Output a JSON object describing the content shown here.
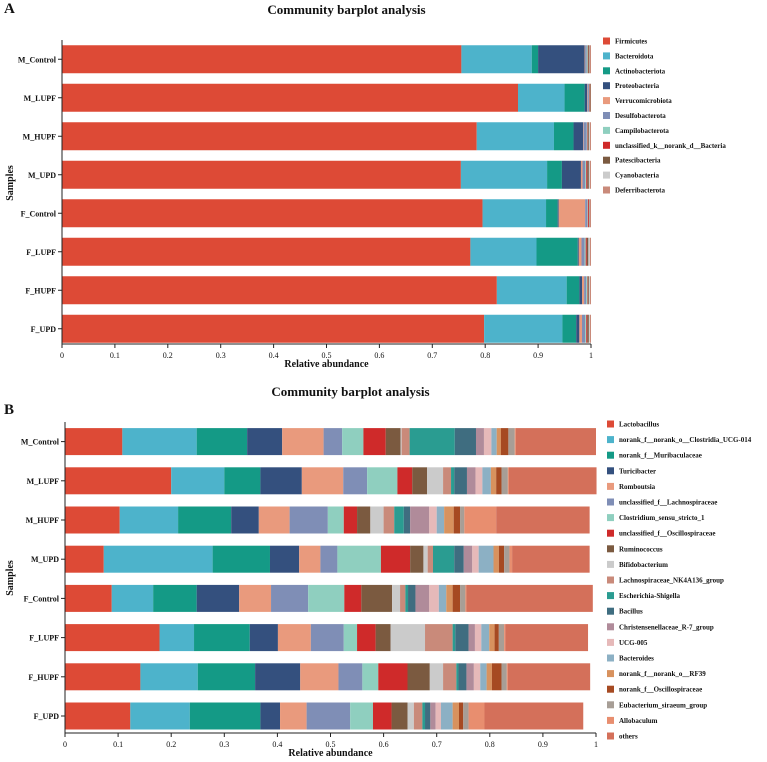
{
  "chart_data": [
    {
      "type": "bar",
      "orientation": "horizontal-stacked",
      "panel": "A",
      "title": "Community barplot analysis",
      "xlabel": "Relative abundance",
      "ylabel": "Samples",
      "xlim": [
        0,
        1
      ],
      "xticks": [
        "0",
        "0.1",
        "0.2",
        "0.3",
        "0.4",
        "0.5",
        "0.6",
        "0.7",
        "0.8",
        "0.9",
        "1"
      ],
      "categories": [
        "M_Control",
        "M_LUPF",
        "M_HUPF",
        "M_UPD",
        "F_Control",
        "F_LUPF",
        "F_HUPF",
        "F_UPD"
      ],
      "legend_position": "right",
      "series": [
        {
          "name": "Firmicutes",
          "color": "#dd4a36",
          "values": [
            0.755,
            0.862,
            0.784,
            0.754,
            0.795,
            0.772,
            0.822,
            0.798
          ]
        },
        {
          "name": "Bacteroidota",
          "color": "#4db3cb",
          "values": [
            0.133,
            0.088,
            0.146,
            0.163,
            0.12,
            0.125,
            0.132,
            0.148
          ]
        },
        {
          "name": "Actinobacteriota",
          "color": "#149a86",
          "values": [
            0.012,
            0.038,
            0.037,
            0.028,
            0.022,
            0.078,
            0.024,
            0.026
          ]
        },
        {
          "name": "Proteobacteria",
          "color": "#34507e",
          "values": [
            0.088,
            0.005,
            0.018,
            0.036,
            0.002,
            0.002,
            0.005,
            0.006
          ]
        },
        {
          "name": "Verrucomicrobiota",
          "color": "#e99a7d",
          "values": [
            0.001,
            0.001,
            0.001,
            0.003,
            0.05,
            0.005,
            0.004,
            0.005
          ]
        },
        {
          "name": "Desulfobacterota",
          "color": "#7f8eb6",
          "values": [
            0.003,
            0.002,
            0.006,
            0.005,
            0.004,
            0.006,
            0.004,
            0.006
          ]
        },
        {
          "name": "Campilobacterota",
          "color": "#8fcfbf",
          "values": [
            0.002,
            0.001,
            0.001,
            0.002,
            0.001,
            0.002,
            0.002,
            0.002
          ]
        },
        {
          "name": "unclassified_k__norank_d__Bacteria",
          "color": "#cf2a2a",
          "values": [
            0.001,
            0.001,
            0.001,
            0.002,
            0.002,
            0.002,
            0.001,
            0.002
          ]
        },
        {
          "name": "Patescibacteria",
          "color": "#7b5a40",
          "values": [
            0.002,
            0.001,
            0.002,
            0.003,
            0.001,
            0.003,
            0.002,
            0.003
          ]
        },
        {
          "name": "Cyanobacteria",
          "color": "#cbcbcb",
          "values": [
            0.001,
            0.0,
            0.002,
            0.002,
            0.001,
            0.003,
            0.002,
            0.002
          ]
        },
        {
          "name": "Deferribacterota",
          "color": "#c98a7a",
          "values": [
            0.002,
            0.001,
            0.002,
            0.002,
            0.002,
            0.002,
            0.002,
            0.002
          ]
        }
      ]
    },
    {
      "type": "bar",
      "orientation": "horizontal-stacked",
      "panel": "B",
      "title": "Community barplot analysis",
      "xlabel": "Relative abundance",
      "ylabel": "Samples",
      "xlim": [
        0,
        1
      ],
      "xticks": [
        "0",
        "0.1",
        "0.2",
        "0.3",
        "0.4",
        "0.5",
        "0.6",
        "0.7",
        "0.8",
        "0.9",
        "1"
      ],
      "categories": [
        "M_Control",
        "M_LUPF",
        "M_HUPF",
        "M_UPD",
        "F_Control",
        "F_LUPF",
        "F_HUPF",
        "F_UPD"
      ],
      "legend_position": "right",
      "series": [
        {
          "name": "Lactobacillus",
          "color": "#dd4a36",
          "values": [
            0.108,
            0.2,
            0.103,
            0.073,
            0.088,
            0.178,
            0.142,
            0.123
          ]
        },
        {
          "name": "norank_f__norank_o__Clostridia_UCG-014",
          "color": "#4db3cb",
          "values": [
            0.14,
            0.1,
            0.11,
            0.205,
            0.078,
            0.065,
            0.108,
            0.112
          ]
        },
        {
          "name": "norank_f__Muribaculaceae",
          "color": "#149a86",
          "values": [
            0.095,
            0.068,
            0.1,
            0.108,
            0.082,
            0.105,
            0.108,
            0.133
          ]
        },
        {
          "name": "Turicibacter",
          "color": "#34507e",
          "values": [
            0.066,
            0.078,
            0.052,
            0.055,
            0.08,
            0.053,
            0.085,
            0.037
          ]
        },
        {
          "name": "Romboutsia",
          "color": "#e99a7d",
          "values": [
            0.078,
            0.078,
            0.058,
            0.04,
            0.06,
            0.062,
            0.072,
            0.05
          ]
        },
        {
          "name": "unclassified_f__Lachnospiraceae",
          "color": "#7f8eb6",
          "values": [
            0.035,
            0.045,
            0.072,
            0.032,
            0.07,
            0.062,
            0.045,
            0.082
          ]
        },
        {
          "name": "Clostridium_sensu_stricto_1",
          "color": "#8fcfbf",
          "values": [
            0.04,
            0.057,
            0.03,
            0.082,
            0.068,
            0.025,
            0.03,
            0.043
          ]
        },
        {
          "name": "unclassified_f__Oscillospiraceae",
          "color": "#cf2a2a",
          "values": [
            0.042,
            0.028,
            0.025,
            0.055,
            0.032,
            0.035,
            0.055,
            0.035
          ]
        },
        {
          "name": "Ruminococcus",
          "color": "#7b5a40",
          "values": [
            0.028,
            0.028,
            0.025,
            0.025,
            0.058,
            0.028,
            0.042,
            0.03
          ]
        },
        {
          "name": "Bifidobacterium",
          "color": "#cbcbcb",
          "values": [
            0.002,
            0.03,
            0.025,
            0.008,
            0.015,
            0.065,
            0.025,
            0.012
          ]
        },
        {
          "name": "Lachnospiraceae_NK4A136_group",
          "color": "#c98a7a",
          "values": [
            0.015,
            0.015,
            0.02,
            0.01,
            0.01,
            0.052,
            0.025,
            0.016
          ]
        },
        {
          "name": "Escherichia-Shigella",
          "color": "#2a9c91",
          "values": [
            0.085,
            0.006,
            0.018,
            0.04,
            0.005,
            0.005,
            0.004,
            0.005
          ]
        },
        {
          "name": "Bacillus",
          "color": "#3f6d80",
          "values": [
            0.04,
            0.024,
            0.012,
            0.018,
            0.014,
            0.025,
            0.015,
            0.01
          ]
        },
        {
          "name": "Christensenellaceae_R-7_group",
          "color": "#b08b9a",
          "values": [
            0.015,
            0.016,
            0.036,
            0.016,
            0.026,
            0.012,
            0.014,
            0.01
          ]
        },
        {
          "name": "UCG-005",
          "color": "#e6b9b9",
          "values": [
            0.014,
            0.013,
            0.014,
            0.012,
            0.018,
            0.012,
            0.012,
            0.01
          ]
        },
        {
          "name": "Bacteroides",
          "color": "#8cb0c4",
          "values": [
            0.01,
            0.016,
            0.014,
            0.028,
            0.014,
            0.015,
            0.012,
            0.022
          ]
        },
        {
          "name": "norank_f__norank_o__RF39",
          "color": "#d8925e",
          "values": [
            0.008,
            0.01,
            0.018,
            0.01,
            0.012,
            0.01,
            0.01,
            0.012
          ]
        },
        {
          "name": "norank_f__Oscillospiraceae",
          "color": "#a64a22",
          "values": [
            0.014,
            0.01,
            0.012,
            0.01,
            0.014,
            0.008,
            0.018,
            0.008
          ]
        },
        {
          "name": "Eubacterium_siraeum_group",
          "color": "#a79e96",
          "values": [
            0.012,
            0.012,
            0.008,
            0.01,
            0.01,
            0.01,
            0.01,
            0.01
          ]
        },
        {
          "name": "Allobaculum",
          "color": "#e88e6f",
          "values": [
            0.002,
            0.002,
            0.06,
            0.005,
            0.002,
            0.002,
            0.002,
            0.03
          ]
        },
        {
          "name": "others",
          "color": "#d4705a",
          "values": [
            0.151,
            0.165,
            0.176,
            0.146,
            0.238,
            0.156,
            0.155,
            0.186
          ]
        }
      ]
    }
  ]
}
